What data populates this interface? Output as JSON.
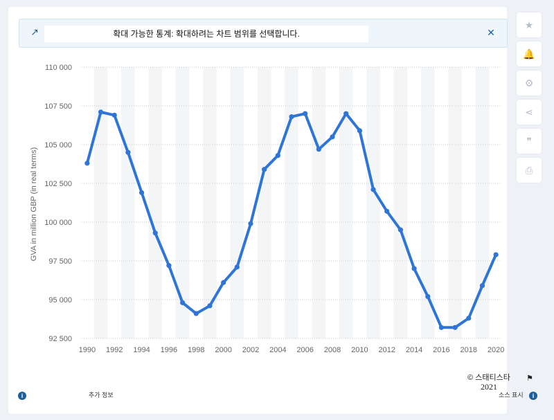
{
  "banner": {
    "message": "확대 가능한 통계: 확대하려는 차트 범위를 선택합니다.",
    "expand_icon": "↗",
    "close_icon": "✕"
  },
  "toolbar": {
    "buttons": [
      {
        "name": "star-icon",
        "glyph": "★"
      },
      {
        "name": "bell-icon",
        "glyph": "🔔"
      },
      {
        "name": "gear-icon",
        "glyph": "⚙"
      },
      {
        "name": "share-icon",
        "glyph": "⋖"
      },
      {
        "name": "quote-icon",
        "glyph": "❞"
      },
      {
        "name": "print-icon",
        "glyph": "⎙"
      }
    ]
  },
  "footer": {
    "credit_line1": "© 스태티스타",
    "credit_line2": "2021",
    "flag_icon": "⚑",
    "more_info": "추가 정보",
    "source": "소스 표시",
    "info_icon": "i"
  },
  "colors": {
    "line": "#2e75d6",
    "band": "#f4f5f7",
    "grid": "#c9c9c9"
  },
  "chart_data": {
    "type": "line",
    "title": "",
    "xlabel": "",
    "ylabel": "GVA in million GBP (in real terms)",
    "ylim": [
      92500,
      110000
    ],
    "yticks": [
      92500,
      95000,
      97500,
      100000,
      102500,
      105000,
      107500,
      110000
    ],
    "ytick_labels": [
      "92 500",
      "95 000",
      "97 500",
      "100 000",
      "102 500",
      "105 000",
      "107 500",
      "110 000"
    ],
    "xticks": [
      1990,
      1992,
      1994,
      1996,
      1998,
      2000,
      2002,
      2004,
      2006,
      2008,
      2010,
      2012,
      2014,
      2016,
      2018,
      2020
    ],
    "grid": true,
    "x": [
      1990,
      1991,
      1992,
      1993,
      1994,
      1995,
      1996,
      1997,
      1998,
      1999,
      2000,
      2001,
      2002,
      2003,
      2004,
      2005,
      2006,
      2007,
      2008,
      2009,
      2010,
      2011,
      2012,
      2013,
      2014,
      2015,
      2016,
      2017,
      2018,
      2019,
      2020
    ],
    "values": [
      103800,
      107100,
      106900,
      104500,
      101900,
      99300,
      97200,
      94800,
      94100,
      94600,
      96100,
      97100,
      99900,
      103400,
      104300,
      106800,
      107000,
      104700,
      105500,
      107000,
      105900,
      102100,
      100700,
      99500,
      97000,
      95200,
      93200,
      93200,
      93800,
      95900,
      97900
    ]
  }
}
